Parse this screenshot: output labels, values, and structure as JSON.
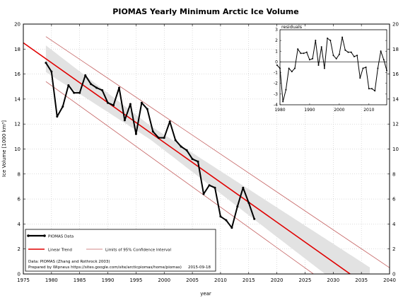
{
  "chart_data": [
    {
      "type": "line",
      "title": "PIOMAS Yearly Minimum Arctic Ice Volume",
      "xlabel": "year",
      "ylabel": "Ice Volume [1000 km³]",
      "xlim": [
        1975,
        2040
      ],
      "ylim": [
        0,
        20
      ],
      "x_ticks": [
        1975,
        1980,
        1985,
        1990,
        1995,
        2000,
        2005,
        2010,
        2015,
        2020,
        2025,
        2030,
        2035,
        2040
      ],
      "y_ticks": [
        0,
        2,
        4,
        6,
        8,
        10,
        12,
        14,
        16,
        18,
        20
      ],
      "grid": true,
      "legend_position": "bottom-left",
      "series": [
        {
          "name": "PIOMAS Data",
          "color": "#000000",
          "x": [
            1979,
            1980,
            1981,
            1982,
            1983,
            1984,
            1985,
            1986,
            1987,
            1988,
            1989,
            1990,
            1991,
            1992,
            1993,
            1994,
            1995,
            1996,
            1997,
            1998,
            1999,
            2000,
            2001,
            2002,
            2003,
            2004,
            2005,
            2006,
            2007,
            2008,
            2009,
            2010,
            2011,
            2012,
            2013,
            2014,
            2015,
            2016
          ],
          "y": [
            16.9,
            16.2,
            12.6,
            13.4,
            15.1,
            14.5,
            14.5,
            15.9,
            15.2,
            14.9,
            14.7,
            13.7,
            13.5,
            14.9,
            12.3,
            13.6,
            11.2,
            13.7,
            13.2,
            11.4,
            10.9,
            10.9,
            12.2,
            10.7,
            10.2,
            9.9,
            9.2,
            9.0,
            6.4,
            7.1,
            6.9,
            4.6,
            4.3,
            3.7,
            5.4,
            6.9,
            5.7,
            4.4
          ]
        },
        {
          "name": "Linear Trend",
          "color": "#e00000",
          "x": [
            1975,
            2033
          ],
          "y": [
            18.5,
            0
          ]
        },
        {
          "name": "Limits of 95% Confidence Interval",
          "color": "#c46060",
          "upper": {
            "x": [
              1979,
              2040
            ],
            "y": [
              19.0,
              0.5
            ]
          },
          "lower": {
            "x": [
              1979,
              2026.5
            ],
            "y": [
              15.4,
              0
            ]
          }
        }
      ],
      "confidence_band_color": "#e2e2e2",
      "annotations": [
        "Data: PIOMAS (Zhang and Rothrock 2003)",
        "Prepared by Wipneus https://sites.google.com/site/arcticpiomas/home/piomas)",
        "2015-09-18"
      ]
    },
    {
      "type": "line",
      "title": "residuals",
      "xlim": [
        1980,
        2016
      ],
      "ylim": [
        -4,
        3
      ],
      "x_ticks": [
        1980,
        1990,
        2000,
        2010
      ],
      "y_ticks": [
        -4,
        -3,
        -2,
        -1,
        0,
        1,
        2,
        3
      ],
      "grid": false,
      "series": [
        {
          "name": "",
          "color": "#000000",
          "x": [
            1979,
            1980,
            1981,
            1982,
            1983,
            1984,
            1985,
            1986,
            1987,
            1988,
            1989,
            1990,
            1991,
            1992,
            1993,
            1994,
            1995,
            1996,
            1997,
            1998,
            1999,
            2000,
            2001,
            2002,
            2003,
            2004,
            2005,
            2006,
            2007,
            2008,
            2009,
            2010,
            2011,
            2012,
            2013,
            2014,
            2015,
            2016
          ],
          "y": [
            -0.3,
            -0.6,
            -3.7,
            -2.6,
            -0.6,
            -0.9,
            -0.6,
            1.2,
            0.8,
            0.8,
            0.9,
            0.2,
            0.3,
            2.0,
            -0.3,
            1.4,
            -0.6,
            2.2,
            2.0,
            0.6,
            0.3,
            0.7,
            2.3,
            1.1,
            0.9,
            0.9,
            0.5,
            0.6,
            -1.5,
            -0.6,
            -0.5,
            -2.5,
            -2.5,
            -2.7,
            -0.6,
            1.0,
            0.2,
            -0.8
          ]
        }
      ]
    }
  ]
}
